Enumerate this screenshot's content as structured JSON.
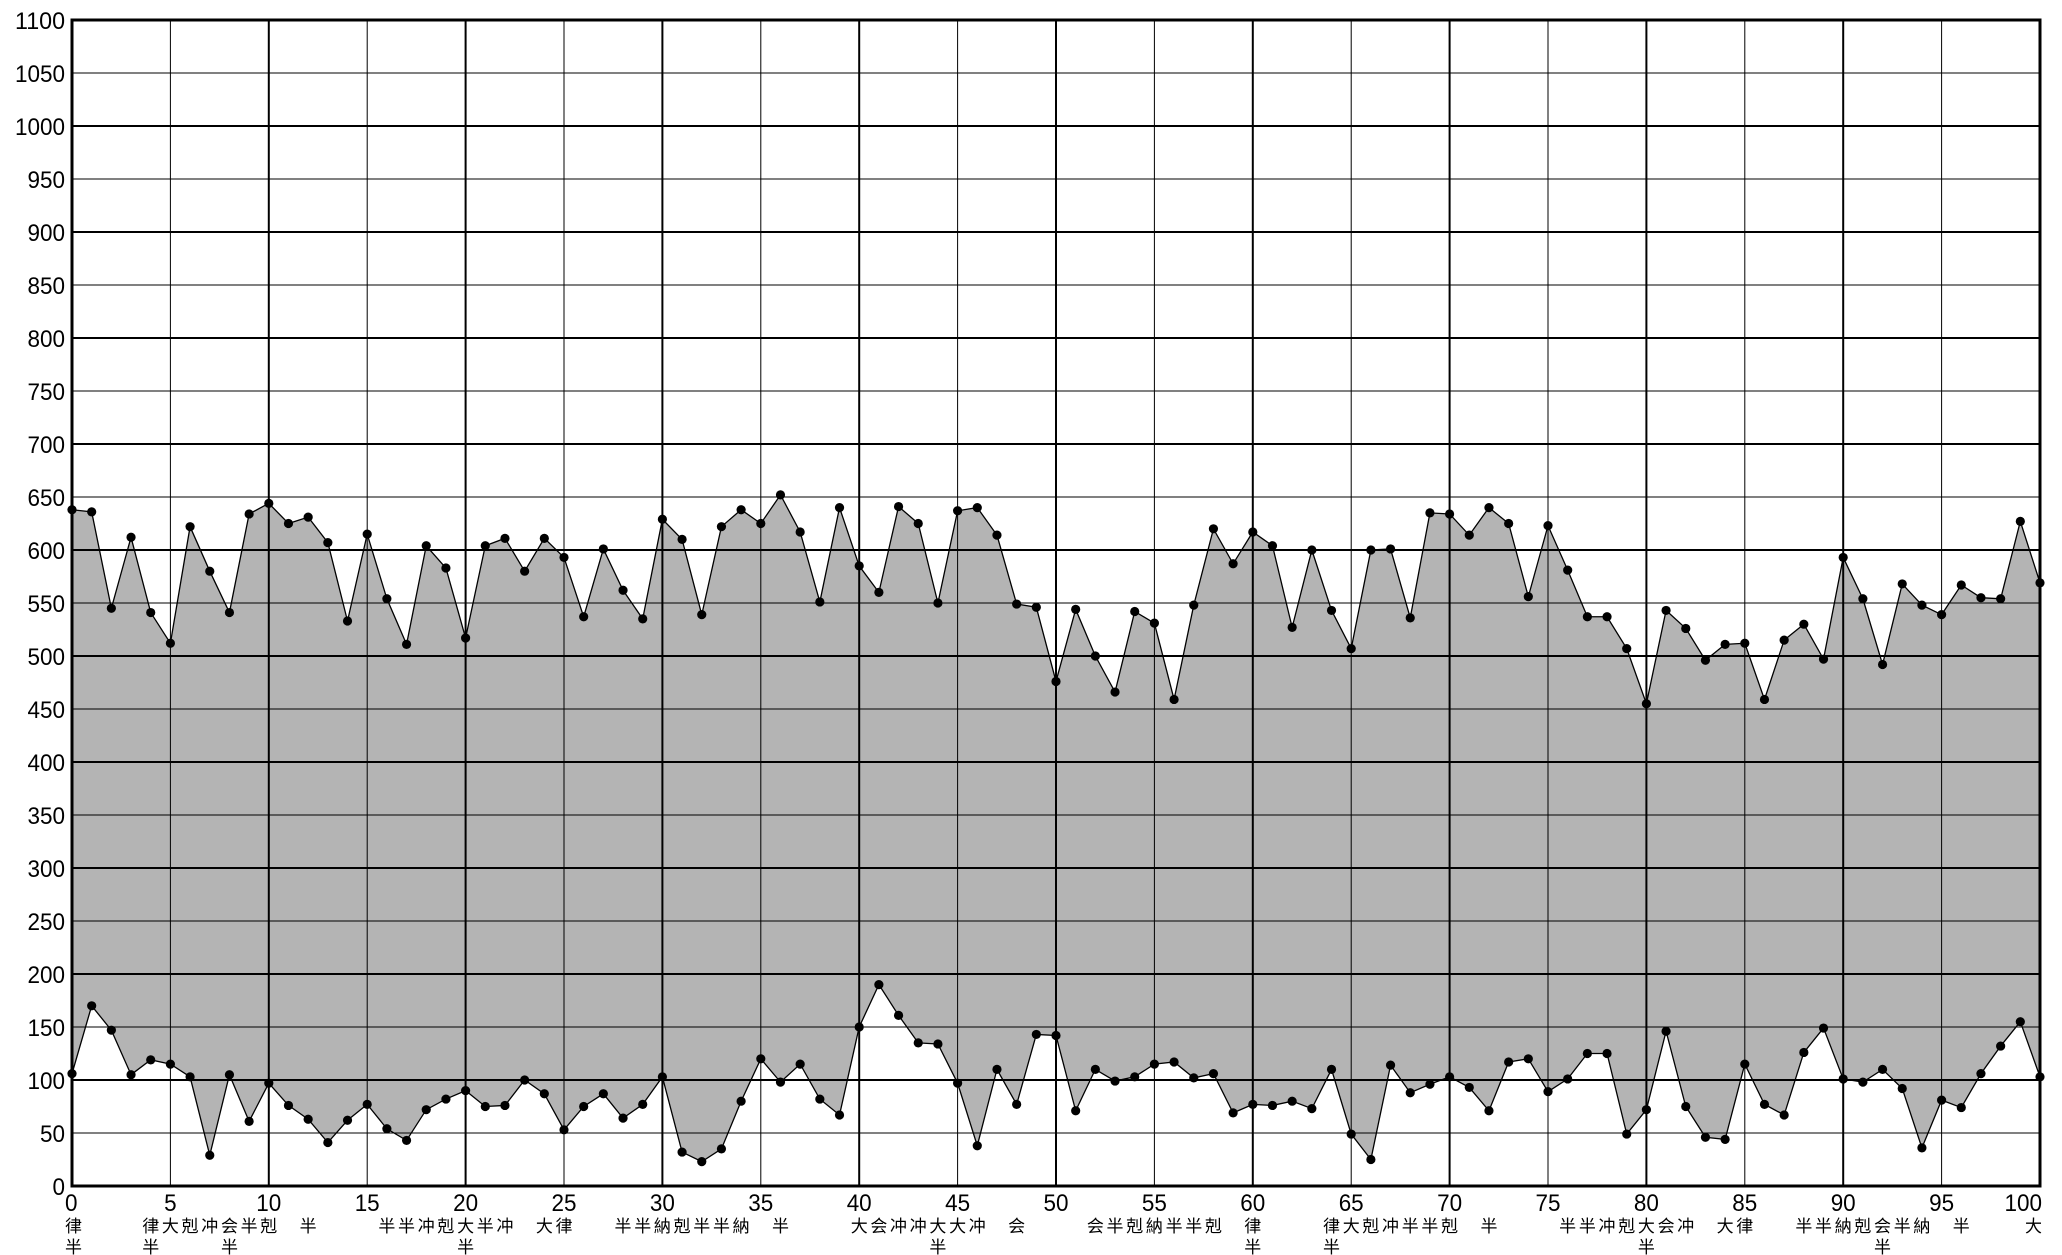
{
  "chart_data": {
    "type": "area",
    "title": "",
    "xlabel": "",
    "ylabel": "",
    "xlim": [
      0,
      100
    ],
    "ylim": [
      0,
      1100
    ],
    "x_ticks": [
      0,
      5,
      10,
      15,
      20,
      25,
      30,
      35,
      40,
      45,
      50,
      55,
      60,
      65,
      70,
      75,
      80,
      85,
      90,
      95,
      100
    ],
    "y_ticks": [
      0,
      50,
      100,
      150,
      200,
      250,
      300,
      350,
      400,
      450,
      500,
      550,
      600,
      650,
      700,
      750,
      800,
      850,
      900,
      950,
      1000,
      1050,
      1100
    ],
    "grid": true,
    "fill_color": "#b4b4b4",
    "line_color": "#000000",
    "x": [
      0,
      1,
      2,
      3,
      4,
      5,
      6,
      7,
      8,
      9,
      10,
      11,
      12,
      13,
      14,
      15,
      16,
      17,
      18,
      19,
      20,
      21,
      22,
      23,
      24,
      25,
      26,
      27,
      28,
      29,
      30,
      31,
      32,
      33,
      34,
      35,
      36,
      37,
      38,
      39,
      40,
      41,
      42,
      43,
      44,
      45,
      46,
      47,
      48,
      49,
      50,
      51,
      52,
      53,
      54,
      55,
      56,
      57,
      58,
      59,
      60,
      61,
      62,
      63,
      64,
      65,
      66,
      67,
      68,
      69,
      70,
      71,
      72,
      73,
      74,
      75,
      76,
      77,
      78,
      79,
      80,
      81,
      82,
      83,
      84,
      85,
      86,
      87,
      88,
      89,
      90,
      91,
      92,
      93,
      94,
      95,
      96,
      97,
      98,
      99,
      100
    ],
    "series": [
      {
        "values": [
          638,
          636,
          545,
          612,
          541,
          512,
          622,
          580,
          541,
          634,
          644,
          625,
          631,
          607,
          533,
          615,
          554,
          511,
          604,
          583,
          517,
          604,
          611,
          580,
          611,
          593,
          537,
          601,
          562,
          535,
          629,
          610,
          539,
          622,
          638,
          625,
          652,
          617,
          551,
          640,
          585,
          560,
          641,
          625,
          550,
          637,
          640,
          614,
          549,
          546,
          476,
          544,
          500,
          466,
          542,
          531,
          459,
          548,
          620,
          587,
          617,
          604,
          527,
          600,
          543,
          507,
          600,
          601,
          536,
          635,
          634,
          614,
          640,
          625,
          556,
          623,
          581,
          537,
          537,
          507,
          455,
          543,
          526,
          496,
          511,
          512,
          459,
          515,
          530,
          497,
          593,
          554,
          492,
          568,
          548,
          539,
          567,
          555,
          554,
          627,
          569
        ]
      },
      {
        "values": [
          106,
          170,
          147,
          105,
          119,
          115,
          103,
          29,
          105,
          61,
          97,
          76,
          63,
          41,
          62,
          77,
          54,
          43,
          72,
          82,
          90,
          75,
          76,
          100,
          87,
          53,
          75,
          87,
          64,
          77,
          103,
          32,
          23,
          35,
          80,
          120,
          98,
          115,
          82,
          67,
          150,
          190,
          161,
          135,
          134,
          97,
          38,
          110,
          77,
          143,
          142,
          71,
          110,
          99,
          103,
          115,
          117,
          102,
          106,
          69,
          77,
          76,
          80,
          73,
          110,
          49,
          25,
          114,
          88,
          96,
          103,
          93,
          71,
          117,
          120,
          89,
          101,
          125,
          125,
          49,
          72,
          146,
          75,
          46,
          44,
          115,
          77,
          67,
          126,
          149,
          101,
          98,
          110,
          92,
          36,
          81,
          74,
          106,
          132,
          155,
          103
        ]
      }
    ],
    "annotations": [
      {
        "x": 0,
        "label": "律\n半"
      },
      {
        "x": 4,
        "label": "律\n半"
      },
      {
        "x": 5,
        "label": "大"
      },
      {
        "x": 6,
        "label": "剋"
      },
      {
        "x": 7,
        "label": "冲"
      },
      {
        "x": 8,
        "label": "会\n半"
      },
      {
        "x": 9,
        "label": "半"
      },
      {
        "x": 10,
        "label": "剋"
      },
      {
        "x": 12,
        "label": "半"
      },
      {
        "x": 16,
        "label": "半"
      },
      {
        "x": 17,
        "label": "半"
      },
      {
        "x": 18,
        "label": "冲"
      },
      {
        "x": 19,
        "label": "剋"
      },
      {
        "x": 20,
        "label": "大\n半"
      },
      {
        "x": 21,
        "label": "半"
      },
      {
        "x": 22,
        "label": "冲"
      },
      {
        "x": 24,
        "label": "大"
      },
      {
        "x": 25,
        "label": "律"
      },
      {
        "x": 28,
        "label": "半"
      },
      {
        "x": 29,
        "label": "半"
      },
      {
        "x": 30,
        "label": "納"
      },
      {
        "x": 31,
        "label": "剋"
      },
      {
        "x": 32,
        "label": "半"
      },
      {
        "x": 33,
        "label": "半"
      },
      {
        "x": 34,
        "label": "納"
      },
      {
        "x": 36,
        "label": "半"
      },
      {
        "x": 40,
        "label": "大"
      },
      {
        "x": 41,
        "label": "会"
      },
      {
        "x": 42,
        "label": "冲"
      },
      {
        "x": 43,
        "label": "冲"
      },
      {
        "x": 44,
        "label": "大\n半"
      },
      {
        "x": 45,
        "label": "大"
      },
      {
        "x": 46,
        "label": "冲"
      },
      {
        "x": 48,
        "label": "会"
      },
      {
        "x": 52,
        "label": "会"
      },
      {
        "x": 53,
        "label": "半"
      },
      {
        "x": 54,
        "label": "剋"
      },
      {
        "x": 55,
        "label": "納"
      },
      {
        "x": 56,
        "label": "半"
      },
      {
        "x": 57,
        "label": "半"
      },
      {
        "x": 58,
        "label": "剋"
      },
      {
        "x": 60,
        "label": "律\n半"
      },
      {
        "x": 64,
        "label": "律\n半"
      },
      {
        "x": 65,
        "label": "大"
      },
      {
        "x": 66,
        "label": "剋"
      },
      {
        "x": 67,
        "label": "冲"
      },
      {
        "x": 68,
        "label": "半"
      },
      {
        "x": 69,
        "label": "半"
      },
      {
        "x": 70,
        "label": "剋"
      },
      {
        "x": 72,
        "label": "半"
      },
      {
        "x": 76,
        "label": "半"
      },
      {
        "x": 77,
        "label": "半"
      },
      {
        "x": 78,
        "label": "冲"
      },
      {
        "x": 79,
        "label": "剋"
      },
      {
        "x": 80,
        "label": "大\n半"
      },
      {
        "x": 81,
        "label": "会"
      },
      {
        "x": 82,
        "label": "冲"
      },
      {
        "x": 84,
        "label": "大"
      },
      {
        "x": 85,
        "label": "律"
      },
      {
        "x": 88,
        "label": "半"
      },
      {
        "x": 89,
        "label": "半"
      },
      {
        "x": 90,
        "label": "納"
      },
      {
        "x": 91,
        "label": "剋"
      },
      {
        "x": 92,
        "label": "会\n半"
      },
      {
        "x": 93,
        "label": "半"
      },
      {
        "x": 94,
        "label": "納"
      },
      {
        "x": 96,
        "label": "半"
      },
      {
        "x": 100,
        "label": "大"
      }
    ]
  }
}
